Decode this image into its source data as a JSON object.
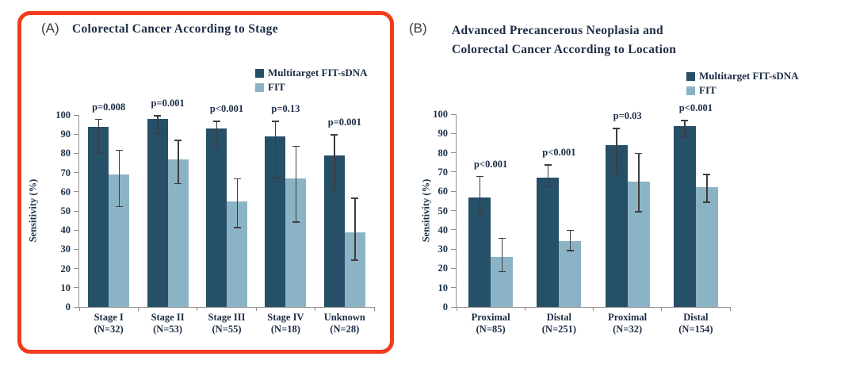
{
  "figure": {
    "panel_a": {
      "label": "(A)",
      "title": "Colorectal Cancer According to Stage",
      "highlighted_with_red_frame": true
    },
    "panel_b": {
      "label": "(B)",
      "title_line1": "Advanced Precancerous Neoplasia and",
      "title_line2": "Colorectal Cancer According to Location"
    }
  },
  "legend": {
    "series1": "Multitarget FIT-sDNA",
    "series2": "FIT"
  },
  "colors": {
    "sdna_bar": "#264f68",
    "fit_bar": "#8bb3c6",
    "error_bar": "#3d3d3d",
    "axis": "#8f8f8f",
    "text": "#1c2c45",
    "highlight_frame": "#f23b1d",
    "panel_letter": "#3c3c3c"
  },
  "chart_data": [
    {
      "type": "bar",
      "panel": "A",
      "title": "Colorectal Cancer According to Stage",
      "ylabel": "Sensitivity (%)",
      "ylim": [
        0,
        100
      ],
      "ytick_step": 10,
      "grid": false,
      "legend_position": "top-right",
      "categories": [
        {
          "label": "Stage I",
          "n": "(N=32)",
          "p": "p=0.008"
        },
        {
          "label": "Stage II",
          "n": "(N=53)",
          "p": "p=0.001"
        },
        {
          "label": "Stage III",
          "n": "(N=55)",
          "p": "p<0.001"
        },
        {
          "label": "Stage IV",
          "n": "(N=18)",
          "p": "p=0.13"
        },
        {
          "label": "Unknown",
          "n": "(N=28)",
          "p": "p=0.001"
        }
      ],
      "series": [
        {
          "name": "Multitarget FIT-sDNA",
          "values": [
            94,
            98,
            93,
            89,
            79
          ],
          "err_low": [
            80,
            90,
            83,
            67,
            61
          ],
          "err_high": [
            98,
            100,
            97,
            97,
            90
          ]
        },
        {
          "name": "FIT",
          "values": [
            69,
            77,
            55,
            67,
            39
          ],
          "err_low": [
            52,
            64,
            41,
            44,
            24
          ],
          "err_high": [
            82,
            87,
            67,
            84,
            57
          ]
        }
      ]
    },
    {
      "type": "bar",
      "panel": "B",
      "title": "Advanced Precancerous Neoplasia and Colorectal Cancer According to Location",
      "ylabel": "Sensitivity (%)",
      "ylim": [
        0,
        100
      ],
      "ytick_step": 10,
      "grid": false,
      "legend_position": "top-right",
      "categories": [
        {
          "label": "Proximal",
          "n": "(N=85)",
          "p": "p<0.001"
        },
        {
          "label": "Distal",
          "n": "(N=251)",
          "p": "p<0.001"
        },
        {
          "label": "Proximal",
          "n": "(N=32)",
          "p": "p=0.03"
        },
        {
          "label": "Distal",
          "n": "(N=154)",
          "p": "p<0.001"
        }
      ],
      "series": [
        {
          "name": "Multitarget FIT-sDNA",
          "values": [
            57,
            67,
            84,
            94
          ],
          "err_low": [
            47,
            62,
            69,
            88
          ],
          "err_high": [
            68,
            74,
            93,
            97
          ]
        },
        {
          "name": "FIT",
          "values": [
            26,
            34,
            65,
            62
          ],
          "err_low": [
            18,
            29,
            49,
            54
          ],
          "err_high": [
            36,
            40,
            80,
            69
          ]
        }
      ]
    }
  ]
}
